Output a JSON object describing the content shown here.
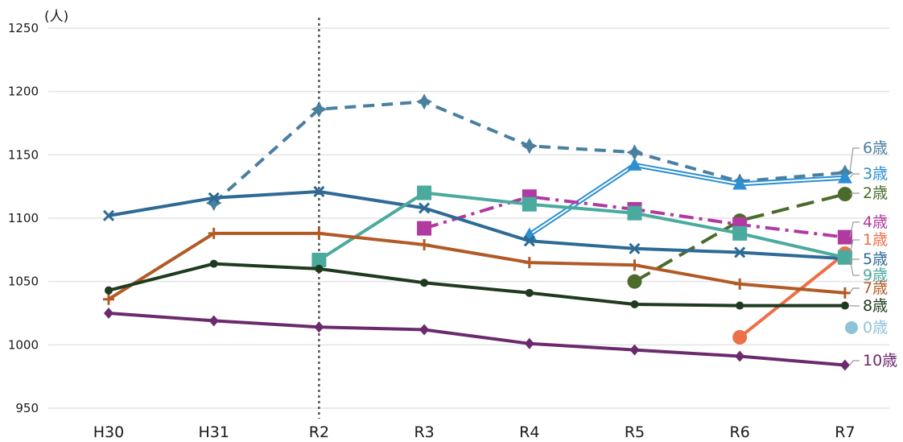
{
  "chart_data": {
    "type": "line",
    "unit_label": "(人)",
    "categories": [
      "H30",
      "H31",
      "R2",
      "R3",
      "R4",
      "R5",
      "R6",
      "R7"
    ],
    "ylim": [
      950,
      1250
    ],
    "yticks": [
      950,
      1000,
      1050,
      1100,
      1150,
      1200,
      1250
    ],
    "grid": true,
    "reference_line_at": "R2",
    "series": [
      {
        "name": "6歳",
        "color": "#4a7fa0",
        "dash": "dashed",
        "marker": "star",
        "values": [
          null,
          1112,
          1186,
          1192,
          1157,
          1152,
          1129,
          1136
        ]
      },
      {
        "name": "3歳",
        "color": "#2b8fd0",
        "dash": "double",
        "marker": "triangle",
        "values": [
          null,
          null,
          null,
          null,
          1087,
          1142,
          1127,
          1132
        ]
      },
      {
        "name": "2歳",
        "color": "#4a6b2a",
        "dash": "longdash",
        "marker": "circle",
        "values": [
          null,
          null,
          null,
          null,
          null,
          1050,
          1098,
          1119
        ]
      },
      {
        "name": "4歳",
        "color": "#b03aa0",
        "dash": "dashdot",
        "marker": "square",
        "values": [
          null,
          null,
          null,
          1092,
          1117,
          1107,
          1095,
          1085
        ]
      },
      {
        "name": "1歳",
        "color": "#ec7048",
        "dash": "solid",
        "marker": "circle",
        "values": [
          null,
          null,
          null,
          null,
          null,
          null,
          1006,
          1072
        ]
      },
      {
        "name": "5歳",
        "color": "#2e6a96",
        "dash": "solid",
        "marker": "x",
        "values": [
          1102,
          1116,
          1121,
          1108,
          1082,
          1076,
          1073,
          1068
        ]
      },
      {
        "name": "9歳",
        "color": "#4aaa9e",
        "dash": "solid",
        "marker": "square",
        "values": [
          null,
          null,
          1067,
          1120,
          1111,
          1104,
          1088,
          1069
        ]
      },
      {
        "name": "7歳",
        "color": "#b25a26",
        "dash": "solid",
        "marker": "plus",
        "values": [
          1036,
          1088,
          1088,
          1079,
          1065,
          1063,
          1048,
          1041
        ]
      },
      {
        "name": "8歳",
        "color": "#1f3a1f",
        "dash": "solid",
        "marker": "dot",
        "values": [
          1043,
          1064,
          1060,
          1049,
          1041,
          1032,
          1031,
          1031
        ]
      },
      {
        "name": "0歳",
        "color": "#8fc3d8",
        "dash": "solid",
        "marker": "circle",
        "values": [
          null,
          null,
          null,
          null,
          null,
          null,
          null,
          null
        ]
      },
      {
        "name": "10歳",
        "color": "#6b2a6e",
        "dash": "solid",
        "marker": "diamond",
        "values": [
          1025,
          1019,
          1014,
          1012,
          1001,
          996,
          991,
          984
        ]
      }
    ]
  }
}
